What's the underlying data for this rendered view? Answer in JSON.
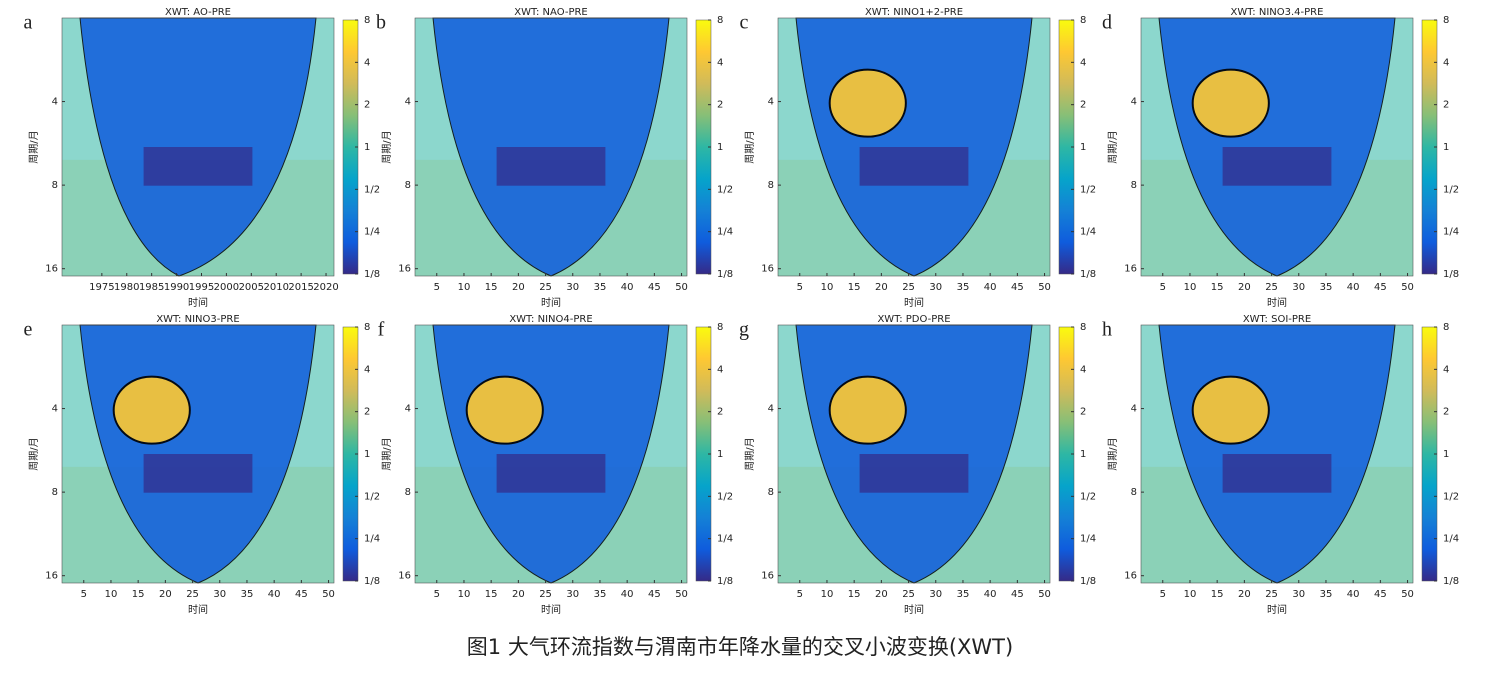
{
  "caption": "图1 大气环流指数与渭南市年降水量的交叉小波变换(XWT)",
  "chart_data": [
    {
      "type": "wavelet",
      "panel": "a",
      "title": "XWT: AO-PRE",
      "xlabel": "时间",
      "ylabel": "周期/月",
      "xlim": [
        1967,
        2021.6
      ],
      "xticks": [
        1975,
        1980,
        1985,
        1990,
        1995,
        2000,
        2005,
        2010,
        2015,
        2020
      ],
      "ylim": [
        2,
        17
      ],
      "yticks": [
        4,
        8,
        16
      ],
      "log_y": true,
      "colormap": [
        "#352a87",
        "#0f5cdd",
        "#1481d6",
        "#06a4ca",
        "#2eb7a4",
        "#87bf77",
        "#d1bb59",
        "#fec832",
        "#f9fb0e"
      ],
      "clim": [
        0.125,
        8
      ],
      "cticks": [
        8,
        4,
        2,
        1,
        {
          "value": 0.5,
          "label": "1/2"
        },
        {
          "value": 0.25,
          "label": "1/4"
        },
        {
          "value": 0.125,
          "label": "1/8"
        }
      ]
    },
    {
      "type": "wavelet",
      "panel": "b",
      "title": "XWT: NAO-PRE",
      "xlabel": "时间",
      "ylabel": "周期/月",
      "xlim": [
        1,
        51
      ],
      "xticks": [
        5,
        10,
        15,
        20,
        25,
        30,
        35,
        40,
        45,
        50
      ],
      "ylim": [
        2,
        17
      ],
      "yticks": [
        4,
        8,
        16
      ],
      "log_y": true,
      "colormap": [
        "#352a87",
        "#0f5cdd",
        "#1481d6",
        "#06a4ca",
        "#2eb7a4",
        "#87bf77",
        "#d1bb59",
        "#fec832",
        "#f9fb0e"
      ],
      "clim": [
        0.125,
        8
      ],
      "cticks": [
        8,
        4,
        2,
        1,
        {
          "value": 0.5,
          "label": "1/2"
        },
        {
          "value": 0.25,
          "label": "1/4"
        },
        {
          "value": 0.125,
          "label": "1/8"
        }
      ]
    },
    {
      "type": "wavelet",
      "panel": "c",
      "title": "XWT: NINO1+2-PRE",
      "xlabel": "时间",
      "ylabel": "周期/月",
      "xlim": [
        1,
        51
      ],
      "xticks": [
        5,
        10,
        15,
        20,
        25,
        30,
        35,
        40,
        45,
        50
      ],
      "ylim": [
        2,
        17
      ],
      "yticks": [
        4,
        8,
        16
      ],
      "log_y": true,
      "colormap": [
        "#352a87",
        "#0f5cdd",
        "#1481d6",
        "#06a4ca",
        "#2eb7a4",
        "#87bf77",
        "#d1bb59",
        "#fec832",
        "#f9fb0e"
      ],
      "clim": [
        0.125,
        8
      ],
      "cticks": [
        8,
        4,
        2,
        1,
        {
          "value": 0.5,
          "label": "1/2"
        },
        {
          "value": 0.25,
          "label": "1/4"
        },
        {
          "value": 0.125,
          "label": "1/8"
        }
      ]
    },
    {
      "type": "wavelet",
      "panel": "d",
      "title": "XWT: NINO3.4-PRE",
      "xlabel": "时间",
      "ylabel": "周期/月",
      "xlim": [
        1,
        51
      ],
      "xticks": [
        5,
        10,
        15,
        20,
        25,
        30,
        35,
        40,
        45,
        50
      ],
      "ylim": [
        2,
        17
      ],
      "yticks": [
        4,
        8,
        16
      ],
      "log_y": true,
      "colormap": [
        "#352a87",
        "#0f5cdd",
        "#1481d6",
        "#06a4ca",
        "#2eb7a4",
        "#87bf77",
        "#d1bb59",
        "#fec832",
        "#f9fb0e"
      ],
      "clim": [
        0.125,
        8
      ],
      "cticks": [
        8,
        4,
        2,
        1,
        {
          "value": 0.5,
          "label": "1/2"
        },
        {
          "value": 0.25,
          "label": "1/4"
        },
        {
          "value": 0.125,
          "label": "1/8"
        }
      ]
    },
    {
      "type": "wavelet",
      "panel": "e",
      "title": "XWT: NINO3-PRE",
      "xlabel": "时间",
      "ylabel": "周期/月",
      "xlim": [
        1,
        51
      ],
      "xticks": [
        5,
        10,
        15,
        20,
        25,
        30,
        35,
        40,
        45,
        50
      ],
      "ylim": [
        2,
        17
      ],
      "yticks": [
        4,
        8,
        16
      ],
      "log_y": true,
      "colormap": [
        "#352a87",
        "#0f5cdd",
        "#1481d6",
        "#06a4ca",
        "#2eb7a4",
        "#87bf77",
        "#d1bb59",
        "#fec832",
        "#f9fb0e"
      ],
      "clim": [
        0.125,
        8
      ],
      "cticks": [
        8,
        4,
        2,
        1,
        {
          "value": 0.5,
          "label": "1/2"
        },
        {
          "value": 0.25,
          "label": "1/4"
        },
        {
          "value": 0.125,
          "label": "1/8"
        }
      ]
    },
    {
      "type": "wavelet",
      "panel": "f",
      "title": "XWT: NINO4-PRE",
      "xlabel": "时间",
      "ylabel": "周期/月",
      "xlim": [
        1,
        51
      ],
      "xticks": [
        5,
        10,
        15,
        20,
        25,
        30,
        35,
        40,
        45,
        50
      ],
      "ylim": [
        2,
        17
      ],
      "yticks": [
        4,
        8,
        16
      ],
      "log_y": true,
      "colormap": [
        "#352a87",
        "#0f5cdd",
        "#1481d6",
        "#06a4ca",
        "#2eb7a4",
        "#87bf77",
        "#d1bb59",
        "#fec832",
        "#f9fb0e"
      ],
      "clim": [
        0.125,
        8
      ],
      "cticks": [
        8,
        4,
        2,
        1,
        {
          "value": 0.5,
          "label": "1/2"
        },
        {
          "value": 0.25,
          "label": "1/4"
        },
        {
          "value": 0.125,
          "label": "1/8"
        }
      ]
    },
    {
      "type": "wavelet",
      "panel": "g",
      "title": "XWT: PDO-PRE",
      "xlabel": "时间",
      "ylabel": "周期/月",
      "xlim": [
        1,
        51
      ],
      "xticks": [
        5,
        10,
        15,
        20,
        25,
        30,
        35,
        40,
        45,
        50
      ],
      "ylim": [
        2,
        17
      ],
      "yticks": [
        4,
        8,
        16
      ],
      "log_y": true,
      "colormap": [
        "#352a87",
        "#0f5cdd",
        "#1481d6",
        "#06a4ca",
        "#2eb7a4",
        "#87bf77",
        "#d1bb59",
        "#fec832",
        "#f9fb0e"
      ],
      "clim": [
        0.125,
        8
      ],
      "cticks": [
        8,
        4,
        2,
        1,
        {
          "value": 0.5,
          "label": "1/2"
        },
        {
          "value": 0.25,
          "label": "1/4"
        },
        {
          "value": 0.125,
          "label": "1/8"
        }
      ]
    },
    {
      "type": "wavelet",
      "panel": "h",
      "title": "XWT: SOI-PRE",
      "xlabel": "时间",
      "ylabel": "周期/月",
      "xlim": [
        1,
        51
      ],
      "xticks": [
        5,
        10,
        15,
        20,
        25,
        30,
        35,
        40,
        45,
        50
      ],
      "ylim": [
        2,
        17
      ],
      "yticks": [
        4,
        8,
        16
      ],
      "log_y": true,
      "colormap": [
        "#352a87",
        "#0f5cdd",
        "#1481d6",
        "#06a4ca",
        "#2eb7a4",
        "#87bf77",
        "#d1bb59",
        "#fec832",
        "#f9fb0e"
      ],
      "clim": [
        0.125,
        8
      ],
      "cticks": [
        8,
        4,
        2,
        1,
        {
          "value": 0.5,
          "label": "1/2"
        },
        {
          "value": 0.25,
          "label": "1/4"
        },
        {
          "value": 0.125,
          "label": "1/8"
        }
      ]
    }
  ]
}
